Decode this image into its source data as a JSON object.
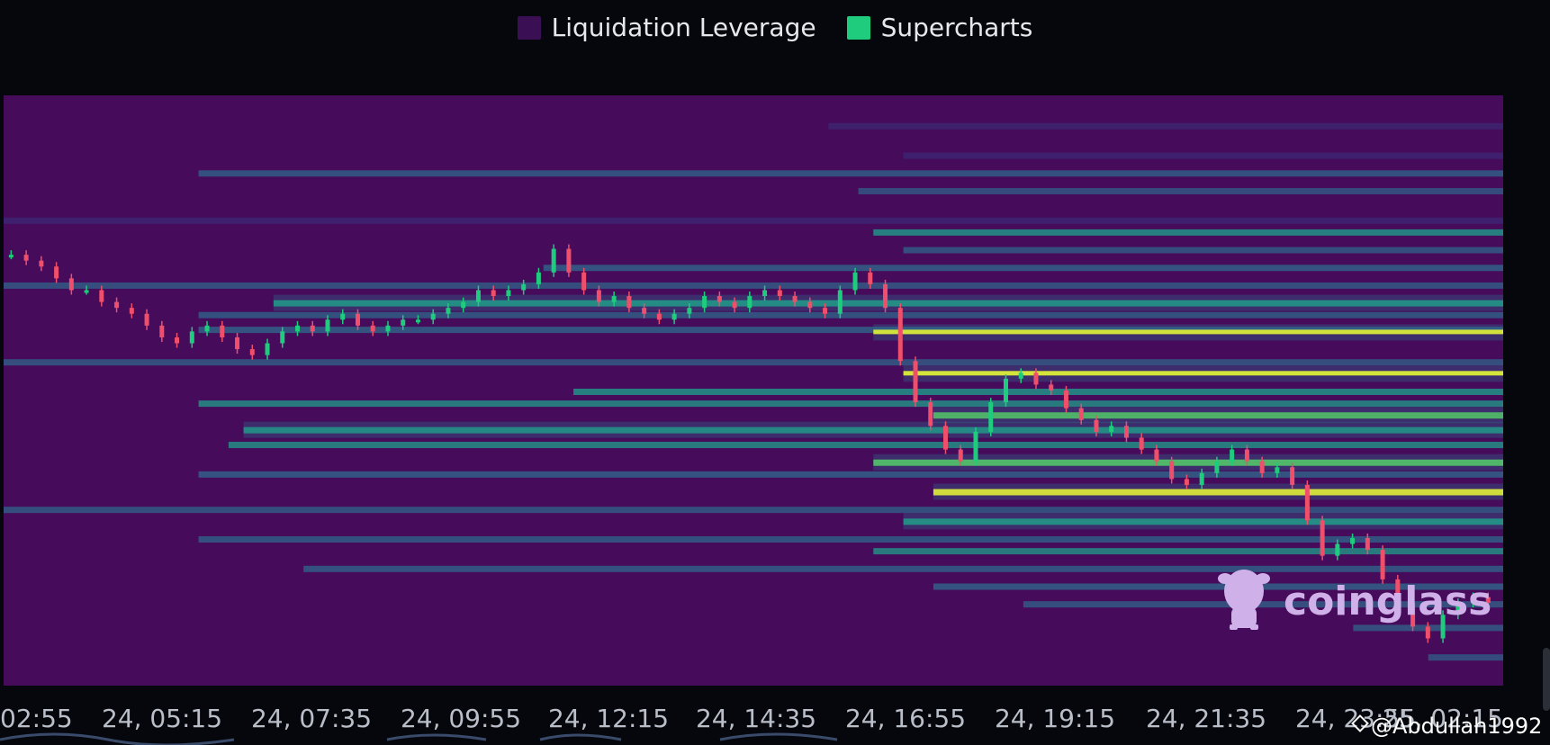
{
  "legend": [
    {
      "label": "Liquidation Leverage",
      "color": "#3b0f53"
    },
    {
      "label": "Supercharts",
      "color": "#1fcc7d"
    }
  ],
  "logo": {
    "text": "coinglass",
    "icon": "coinglass-cow-icon"
  },
  "watermark": {
    "text": "@Abdullah1992",
    "icon": "binance-diamond-icon"
  },
  "chart_data": {
    "type": "heatmap",
    "title": "",
    "xlabel": "",
    "ylabel": "",
    "x_ticks": [
      "02:55",
      "24, 05:15",
      "24, 07:35",
      "24, 09:55",
      "24, 12:15",
      "24, 14:35",
      "24, 16:55",
      "24, 19:15",
      "24, 21:35",
      "24, 23:55",
      "25, 02:15"
    ],
    "legend_position": "top-center",
    "grid": false,
    "colors": {
      "background": "#460b5a",
      "low": "#3b2e7a",
      "mid_low": "#2d6d8f",
      "mid": "#1fa08b",
      "high": "#52c46a",
      "max": "#d8e83a",
      "candle_up": "#1fcc7d",
      "candle_down": "#ef4f6b"
    },
    "price_series_relative": [
      0.27,
      0.28,
      0.29,
      0.31,
      0.33,
      0.33,
      0.35,
      0.36,
      0.37,
      0.39,
      0.41,
      0.42,
      0.4,
      0.39,
      0.41,
      0.43,
      0.44,
      0.42,
      0.4,
      0.39,
      0.4,
      0.38,
      0.37,
      0.39,
      0.4,
      0.39,
      0.38,
      0.38,
      0.37,
      0.36,
      0.35,
      0.33,
      0.34,
      0.33,
      0.32,
      0.3,
      0.26,
      0.3,
      0.33,
      0.35,
      0.34,
      0.36,
      0.37,
      0.38,
      0.37,
      0.36,
      0.34,
      0.35,
      0.36,
      0.34,
      0.33,
      0.34,
      0.35,
      0.36,
      0.37,
      0.33,
      0.3,
      0.32,
      0.36,
      0.45,
      0.52,
      0.56,
      0.6,
      0.62,
      0.57,
      0.52,
      0.48,
      0.47,
      0.49,
      0.5,
      0.53,
      0.55,
      0.57,
      0.56,
      0.58,
      0.6,
      0.62,
      0.65,
      0.66,
      0.64,
      0.62,
      0.6,
      0.62,
      0.64,
      0.63,
      0.66,
      0.72,
      0.78,
      0.76,
      0.75,
      0.77,
      0.82,
      0.86,
      0.9,
      0.92,
      0.88,
      0.86,
      0.85,
      0.86
    ],
    "liquidation_bands": [
      {
        "y": 0.05,
        "x_start": 0.55,
        "x_end": 1.0,
        "intensity": 0.15
      },
      {
        "y": 0.1,
        "x_start": 0.6,
        "x_end": 1.0,
        "intensity": 0.2
      },
      {
        "y": 0.13,
        "x_start": 0.13,
        "x_end": 1.0,
        "intensity": 0.35
      },
      {
        "y": 0.16,
        "x_start": 0.57,
        "x_end": 1.0,
        "intensity": 0.25
      },
      {
        "y": 0.21,
        "x_start": 0.0,
        "x_end": 1.0,
        "intensity": 0.2
      },
      {
        "y": 0.23,
        "x_start": 0.58,
        "x_end": 1.0,
        "intensity": 0.5
      },
      {
        "y": 0.26,
        "x_start": 0.6,
        "x_end": 1.0,
        "intensity": 0.3
      },
      {
        "y": 0.29,
        "x_start": 0.36,
        "x_end": 1.0,
        "intensity": 0.4
      },
      {
        "y": 0.32,
        "x_start": 0.0,
        "x_end": 1.0,
        "intensity": 0.3
      },
      {
        "y": 0.35,
        "x_start": 0.18,
        "x_end": 1.0,
        "intensity": 0.6
      },
      {
        "y": 0.37,
        "x_start": 0.13,
        "x_end": 1.0,
        "intensity": 0.35
      },
      {
        "y": 0.395,
        "x_start": 0.13,
        "x_end": 1.0,
        "intensity": 0.4
      },
      {
        "y": 0.4,
        "x_start": 0.58,
        "x_end": 1.0,
        "intensity": 0.9
      },
      {
        "y": 0.45,
        "x_start": 0.0,
        "x_end": 1.0,
        "intensity": 0.3
      },
      {
        "y": 0.47,
        "x_start": 0.6,
        "x_end": 1.0,
        "intensity": 0.95
      },
      {
        "y": 0.5,
        "x_start": 0.38,
        "x_end": 1.0,
        "intensity": 0.5
      },
      {
        "y": 0.52,
        "x_start": 0.13,
        "x_end": 1.0,
        "intensity": 0.45
      },
      {
        "y": 0.54,
        "x_start": 0.62,
        "x_end": 1.0,
        "intensity": 0.7
      },
      {
        "y": 0.565,
        "x_start": 0.16,
        "x_end": 1.0,
        "intensity": 0.55
      },
      {
        "y": 0.59,
        "x_start": 0.15,
        "x_end": 1.0,
        "intensity": 0.45
      },
      {
        "y": 0.62,
        "x_start": 0.58,
        "x_end": 1.0,
        "intensity": 0.8
      },
      {
        "y": 0.64,
        "x_start": 0.13,
        "x_end": 1.0,
        "intensity": 0.4
      },
      {
        "y": 0.67,
        "x_start": 0.62,
        "x_end": 1.0,
        "intensity": 0.85
      },
      {
        "y": 0.7,
        "x_start": 0.0,
        "x_end": 1.0,
        "intensity": 0.3
      },
      {
        "y": 0.72,
        "x_start": 0.6,
        "x_end": 1.0,
        "intensity": 0.6
      },
      {
        "y": 0.75,
        "x_start": 0.13,
        "x_end": 1.0,
        "intensity": 0.35
      },
      {
        "y": 0.77,
        "x_start": 0.58,
        "x_end": 1.0,
        "intensity": 0.45
      },
      {
        "y": 0.8,
        "x_start": 0.2,
        "x_end": 1.0,
        "intensity": 0.35
      },
      {
        "y": 0.83,
        "x_start": 0.62,
        "x_end": 1.0,
        "intensity": 0.4
      },
      {
        "y": 0.86,
        "x_start": 0.68,
        "x_end": 1.0,
        "intensity": 0.3
      },
      {
        "y": 0.9,
        "x_start": 0.9,
        "x_end": 1.0,
        "intensity": 0.3
      },
      {
        "y": 0.95,
        "x_start": 0.95,
        "x_end": 1.0,
        "intensity": 0.25
      }
    ]
  }
}
